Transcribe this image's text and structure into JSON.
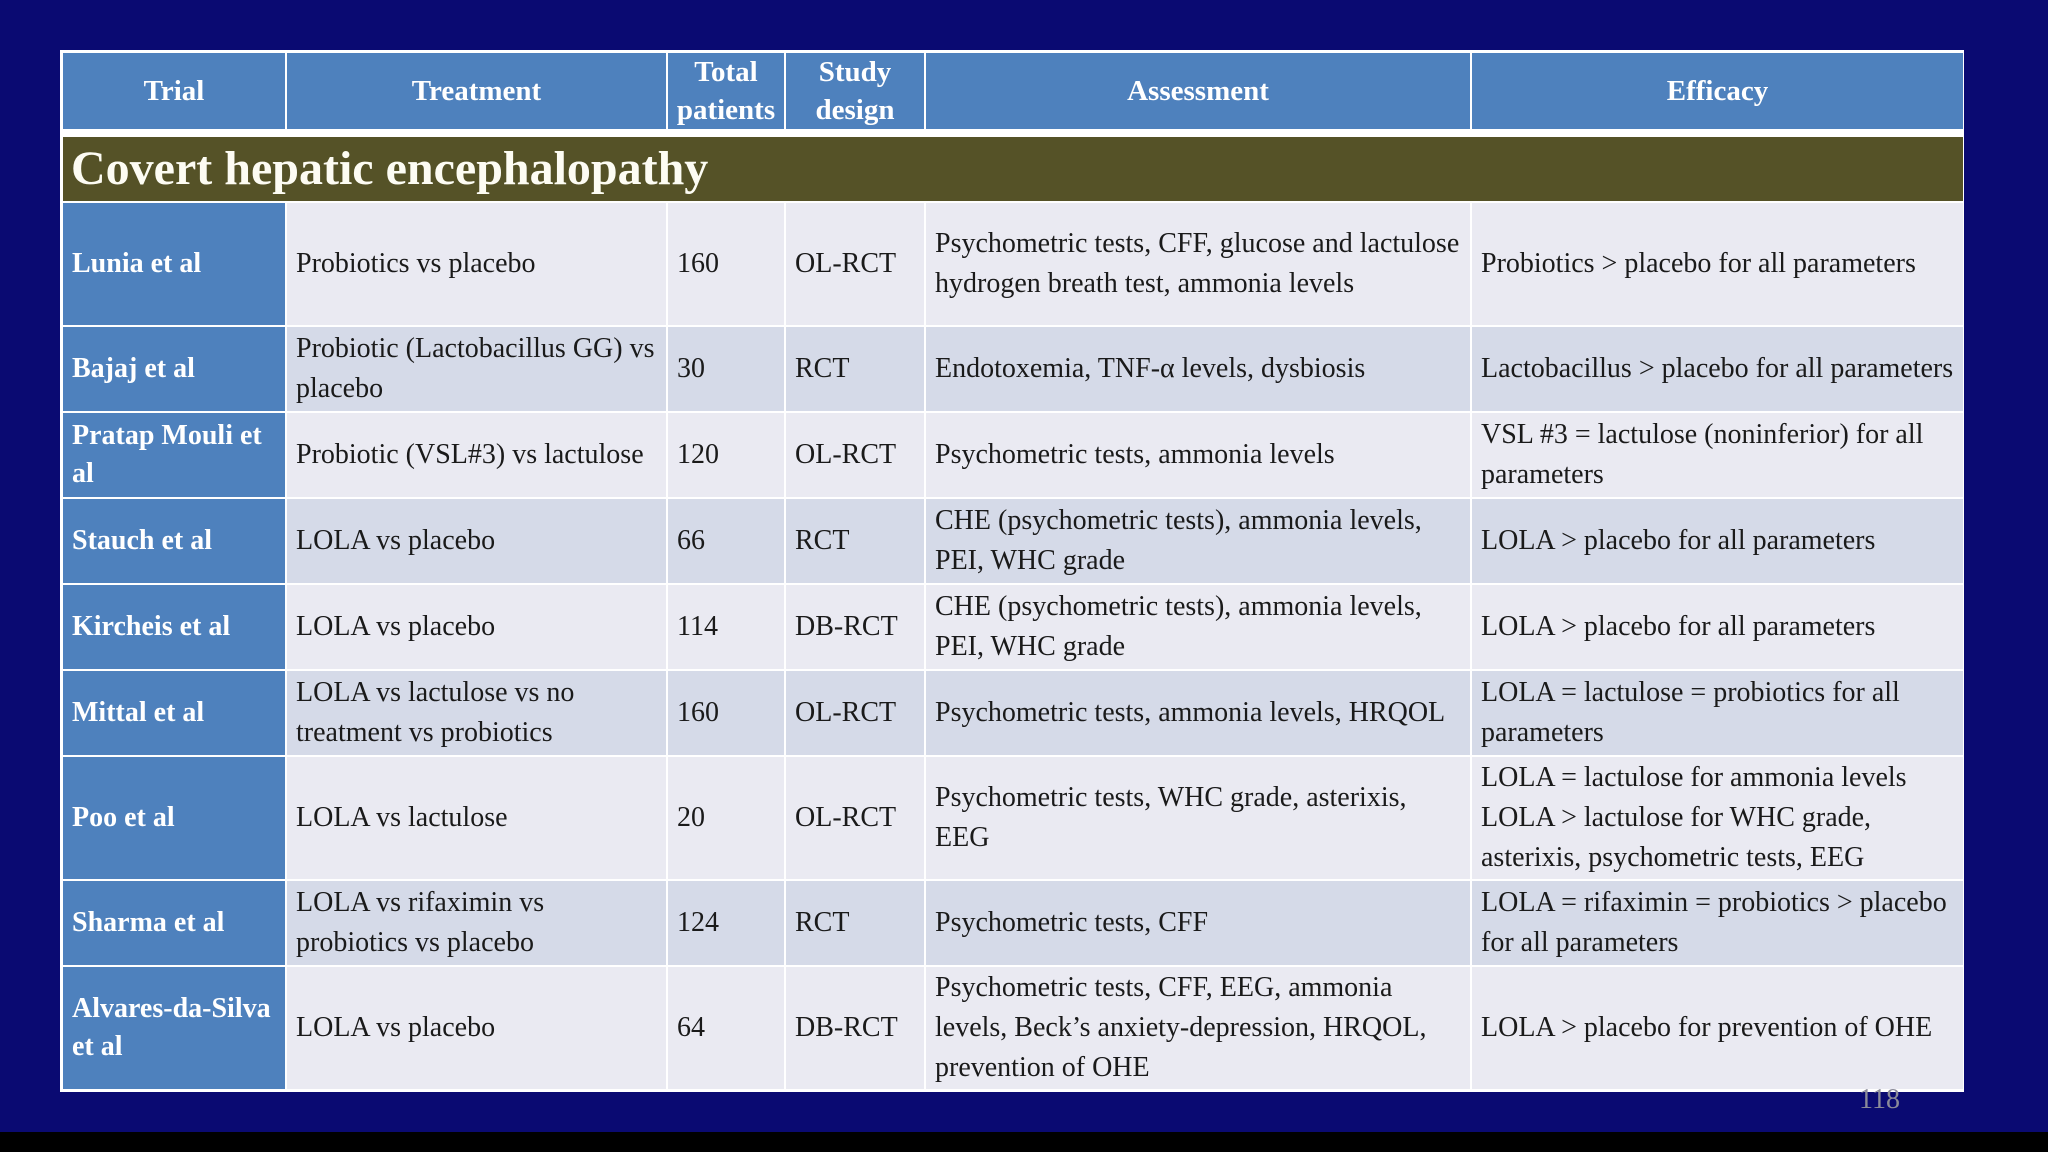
{
  "slide": {
    "section_title": "Covert hepatic encephalopathy",
    "page_number": "118",
    "colors": {
      "background": "#0a0a72",
      "header_blue": "#4e81bd",
      "section_olive": "#555227",
      "row_light": "#eaeaf2",
      "row_dark": "#d5dae8",
      "grid_lines": "#ffffff"
    }
  },
  "table": {
    "headers": [
      "Trial",
      "Treatment",
      "Total patients",
      "Study design",
      "Assessment",
      "Efficacy"
    ],
    "rows": [
      {
        "trial": "Lunia et al",
        "treatment": "Probiotics vs placebo",
        "patients": "160",
        "design": "OL-RCT",
        "assessment": "Psychometric tests, CFF, glucose and lactulose hydrogen breath test, ammonia levels",
        "efficacy": "Probiotics > placebo for all parameters"
      },
      {
        "trial": "Bajaj et al",
        "treatment": "Probiotic (Lactobacillus GG) vs placebo",
        "patients": "30",
        "design": "RCT",
        "assessment": "Endotoxemia, TNF-α levels, dysbiosis",
        "efficacy": "Lactobacillus > placebo for all parameters"
      },
      {
        "trial": "Pratap Mouli et al",
        "treatment": "Probiotic (VSL#3) vs lactulose",
        "patients": "120",
        "design": "OL-RCT",
        "assessment": "Psychometric tests, ammonia levels",
        "efficacy": "VSL #3 = lactulose (noninferior) for all parameters"
      },
      {
        "trial": "Stauch et al",
        "treatment": "LOLA vs placebo",
        "patients": "66",
        "design": "RCT",
        "assessment": "CHE (psychometric tests), ammonia levels, PEI, WHC grade",
        "efficacy": "LOLA > placebo for all parameters"
      },
      {
        "trial": "Kircheis et al",
        "treatment": "LOLA vs placebo",
        "patients": "114",
        "design": "DB-RCT",
        "assessment": "CHE (psychometric tests), ammonia levels, PEI, WHC grade",
        "efficacy": "LOLA > placebo for all parameters"
      },
      {
        "trial": "Mittal et al",
        "treatment": "LOLA vs lactulose vs no treatment vs probiotics",
        "patients": "160",
        "design": "OL-RCT",
        "assessment": "Psychometric tests, ammonia levels, HRQOL",
        "efficacy": "LOLA = lactulose = probiotics for all parameters"
      },
      {
        "trial": "Poo et al",
        "treatment": "LOLA vs lactulose",
        "patients": "20",
        "design": "OL-RCT",
        "assessment": "Psychometric tests, WHC grade, asterixis, EEG",
        "efficacy": "LOLA = lactulose for ammonia levels\nLOLA > lactulose for WHC grade, asterixis, psychometric tests, EEG"
      },
      {
        "trial": "Sharma et al",
        "treatment": "LOLA vs rifaximin vs probiotics vs placebo",
        "patients": "124",
        "design": "RCT",
        "assessment": "Psychometric tests, CFF",
        "efficacy": "LOLA = rifaximin = probiotics > placebo for all parameters"
      },
      {
        "trial": "Alvares-da-Silva et al",
        "treatment": "LOLA vs placebo",
        "patients": "64",
        "design": "DB-RCT",
        "assessment": "Psychometric tests, CFF, EEG, ammonia levels, Beck’s anxiety-depression, HRQOL, prevention of OHE",
        "efficacy": "LOLA > placebo for prevention of OHE"
      }
    ]
  }
}
